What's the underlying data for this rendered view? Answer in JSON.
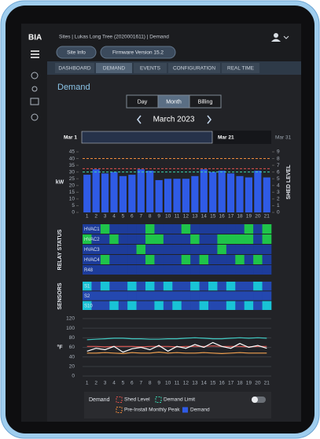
{
  "header": {
    "logo": "BIA",
    "breadcrumb": "Sites  |  Lukas Long Tree (2020001611)  |  Demand"
  },
  "buttons": [
    "Site Info",
    "Firmware Version 15.2"
  ],
  "tabs": [
    {
      "label": "DASHBOARD"
    },
    {
      "label": "DEMAND",
      "active": true
    },
    {
      "label": "EVENTS"
    },
    {
      "label": "CONFIGURATION"
    },
    {
      "label": "REAL TIME"
    }
  ],
  "page_title": "Demand",
  "view_options": [
    {
      "label": "Day"
    },
    {
      "label": "Month",
      "active": true
    },
    {
      "label": "Billing"
    }
  ],
  "period": "March 2023",
  "range": {
    "start": "Mar 1",
    "selected_end": "Mar 21",
    "end": "Mar 31"
  },
  "chart_data": [
    {
      "type": "bar",
      "ylabel": "kW",
      "y2label": "SHED LEVEL",
      "categories": [
        "1",
        "2",
        "3",
        "4",
        "5",
        "6",
        "7",
        "8",
        "9",
        "10",
        "11",
        "12",
        "13",
        "14",
        "15",
        "16",
        "17",
        "18",
        "19",
        "20",
        "21"
      ],
      "ylim": [
        0,
        45
      ],
      "yticks": [
        0,
        5,
        10,
        15,
        20,
        25,
        30,
        35,
        40,
        45
      ],
      "y2lim": [
        0,
        9
      ],
      "y2ticks": [
        0,
        1,
        2,
        3,
        4,
        5,
        6,
        7,
        8,
        9
      ],
      "series": [
        {
          "name": "Demand",
          "color": "#2f5be6",
          "values": [
            28,
            32,
            29,
            30,
            27,
            28,
            32,
            31,
            24,
            25,
            25,
            25,
            27,
            32,
            30,
            31,
            29,
            27,
            26,
            31,
            26
          ]
        }
      ],
      "reference_lines": [
        {
          "name": "Shed Level",
          "color": "#e0504a",
          "value": 6.5,
          "axis": "y2"
        },
        {
          "name": "Demand Limit",
          "color": "#3ad6b0",
          "value": 30
        },
        {
          "name": "Pre-Install Monthly Peak",
          "color": "#f08a3c",
          "value": 40
        }
      ],
      "legend": {
        "title": "Demand",
        "toggle": false
      }
    },
    {
      "type": "heatmap",
      "ylabel": "RELAY STATUS",
      "rows": [
        "HVAC1",
        "HVAC2",
        "HVAC3",
        "HVAC4",
        "R48"
      ],
      "colors": [
        "#1d3c9a",
        "#1fc44a"
      ],
      "values": [
        [
          0,
          0,
          1,
          0,
          0,
          0,
          0,
          1,
          0,
          0,
          0,
          1,
          0,
          0,
          0,
          0,
          0,
          0,
          1,
          0,
          1
        ],
        [
          1,
          0,
          0,
          1,
          0,
          0,
          0,
          1,
          1,
          0,
          0,
          0,
          1,
          0,
          0,
          1,
          1,
          1,
          1,
          0,
          1
        ],
        [
          0,
          0,
          0,
          0,
          0,
          0,
          1,
          0,
          0,
          0,
          0,
          0,
          0,
          0,
          0,
          1,
          0,
          0,
          0,
          0,
          0
        ],
        [
          0,
          0,
          1,
          0,
          0,
          0,
          0,
          1,
          0,
          0,
          0,
          1,
          0,
          1,
          0,
          0,
          0,
          1,
          0,
          1,
          0
        ],
        [
          0,
          0,
          0,
          0,
          0,
          0,
          0,
          0,
          0,
          0,
          0,
          0,
          0,
          0,
          0,
          0,
          0,
          0,
          0,
          0,
          0
        ]
      ]
    },
    {
      "type": "heatmap",
      "ylabel": "SENSORS",
      "rows": [
        "S1",
        "S2",
        "S10"
      ],
      "colors": [
        "#2448b0",
        "#19c3d6"
      ],
      "values": [
        [
          1,
          0,
          1,
          0,
          0,
          1,
          0,
          1,
          0,
          1,
          0,
          0,
          1,
          0,
          1,
          0,
          1,
          0,
          0,
          1,
          0
        ],
        [
          0,
          0,
          0,
          0,
          0,
          0,
          0,
          0,
          0,
          0,
          0,
          0,
          0,
          0,
          0,
          0,
          0,
          0,
          0,
          0,
          0
        ],
        [
          1,
          0,
          0,
          1,
          0,
          1,
          0,
          0,
          1,
          0,
          1,
          0,
          0,
          1,
          0,
          0,
          1,
          0,
          1,
          0,
          1
        ]
      ]
    },
    {
      "type": "line",
      "ylabel": "°F",
      "categories": [
        "1",
        "2",
        "3",
        "4",
        "5",
        "6",
        "7",
        "8",
        "9",
        "10",
        "11",
        "12",
        "13",
        "14",
        "15",
        "16",
        "17",
        "18",
        "19",
        "20",
        "21"
      ],
      "ylim": [
        0,
        120
      ],
      "yticks": [
        0,
        20,
        40,
        60,
        80,
        100,
        120
      ],
      "grid": true,
      "series": [
        {
          "color": "#3fc7c0",
          "values": [
            76,
            77,
            78,
            79,
            79,
            78,
            78,
            77,
            77,
            78,
            78,
            79,
            80,
            79,
            78,
            78,
            79,
            80,
            79,
            80,
            79
          ]
        },
        {
          "color": "#e05a55",
          "values": [
            62,
            62,
            61,
            62,
            62,
            62,
            61,
            62,
            62,
            62,
            61,
            62,
            62,
            62,
            63,
            62,
            62,
            62,
            61,
            62,
            62
          ]
        },
        {
          "color": "#ffffff",
          "values": [
            52,
            58,
            55,
            62,
            50,
            57,
            60,
            55,
            64,
            52,
            62,
            58,
            66,
            60,
            70,
            62,
            58,
            68,
            60,
            64,
            58
          ]
        },
        {
          "color": "#f0a050",
          "values": [
            48,
            48,
            49,
            48,
            47,
            49,
            48,
            48,
            50,
            48,
            49,
            48,
            48,
            49,
            48,
            47,
            48,
            49,
            48,
            48,
            48
          ]
        }
      ]
    }
  ]
}
